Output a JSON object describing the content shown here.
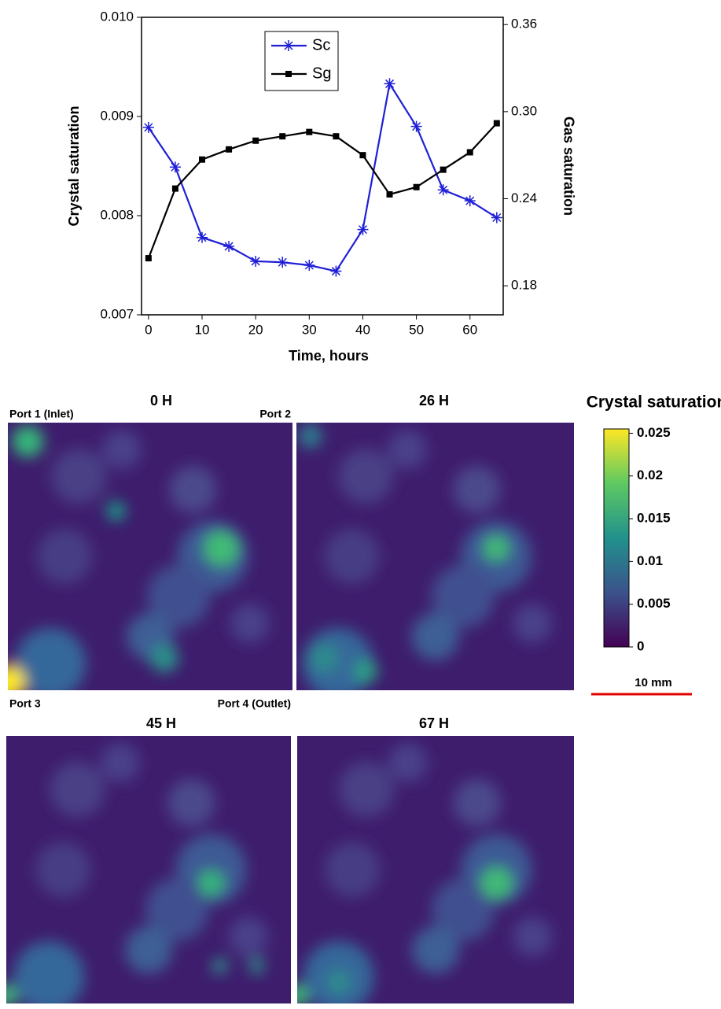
{
  "chart_data": {
    "type": "line",
    "xlabel": "Time, hours",
    "ylabel": "Crystal saturation",
    "y2label": "Gas saturation",
    "x": [
      0,
      5,
      10,
      15,
      20,
      25,
      30,
      35,
      40,
      45,
      50,
      55,
      60,
      65
    ],
    "xlim": [
      -1.3,
      66.2
    ],
    "xticks": [
      0,
      10,
      20,
      30,
      40,
      50,
      60
    ],
    "ylim": [
      0.007,
      0.01
    ],
    "yticks": [
      0.007,
      0.008,
      0.009,
      {
        "value": 0.01,
        "label": "0.010"
      }
    ],
    "y2lim": [
      0.16,
      0.365
    ],
    "y2ticks": [
      0.18,
      0.24,
      {
        "value": 0.3,
        "label": "0.30"
      },
      0.36
    ],
    "legend": "upper center",
    "series": [
      {
        "name": "Sc",
        "color": "#1f1fd6",
        "marker": "asterisk",
        "values": [
          0.00889,
          0.00849,
          0.00778,
          0.00769,
          0.00754,
          0.00753,
          0.0075,
          0.00744,
          0.00786,
          0.00933,
          0.0089,
          0.00826,
          0.00815,
          0.00798
        ]
      },
      {
        "name": "Sg",
        "color": "#000000",
        "marker": "square",
        "axis": "y2",
        "values": [
          0.199,
          0.247,
          0.267,
          0.274,
          0.28,
          0.283,
          0.286,
          0.283,
          0.27,
          0.243,
          0.248,
          0.26,
          0.272,
          0.292
        ]
      }
    ]
  },
  "maps": {
    "panels": [
      {
        "title": "0 H"
      },
      {
        "title": "26 H"
      },
      {
        "title": "45 H"
      },
      {
        "title": "67 H"
      }
    ],
    "ports": [
      "Port 1 (Inlet)",
      "Port 2",
      "Port 3",
      "Port 4 (Outlet)"
    ],
    "colorbar": {
      "label": "Crystal saturation",
      "lim": [
        0,
        0.0255
      ],
      "ticks": [
        0,
        0.005,
        0.01,
        0.015,
        0.02,
        0.025
      ]
    },
    "scale_bar": "10 mm"
  }
}
